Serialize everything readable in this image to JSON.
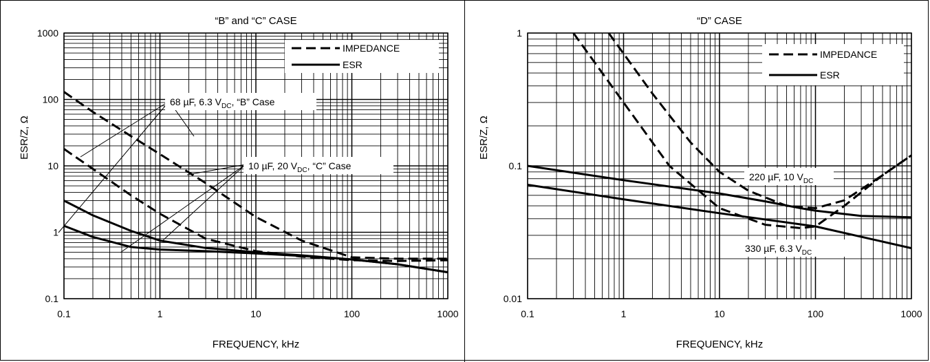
{
  "chart_data": [
    {
      "type": "line",
      "title": "“B” and “C” CASE",
      "xlabel": "FREQUENCY, kHz",
      "ylabel": "ESR/Z, Ω",
      "xscale": "log",
      "yscale": "log",
      "xlim": [
        0.1,
        1000
      ],
      "ylim": [
        0.1,
        1000
      ],
      "grid": true,
      "xticks": [
        "0.1",
        "1",
        "10",
        "100",
        "1000"
      ],
      "yticks": [
        "1000",
        "100",
        "10",
        "1",
        "0.1"
      ],
      "legend": {
        "placement": "top-right",
        "entries": [
          {
            "label": "IMPEDANCE",
            "style": "dashed"
          },
          {
            "label": "ESR",
            "style": "solid"
          }
        ]
      },
      "annotations": [
        {
          "text": "68 µF, 6.3 V",
          "sub": "DC",
          "suffix": ", “B” Case"
        },
        {
          "text": "10 µF, 20 V",
          "sub": "DC",
          "suffix": ", “C” Case"
        }
      ],
      "series": [
        {
          "style": "dashed",
          "points": [
            [
              0.1,
              130
            ],
            [
              0.2,
              65
            ],
            [
              0.5,
              28
            ],
            [
              1,
              15
            ],
            [
              3,
              5.5
            ],
            [
              10,
              1.7
            ],
            [
              30,
              0.75
            ],
            [
              100,
              0.42
            ],
            [
              300,
              0.4
            ],
            [
              1000,
              0.4
            ]
          ]
        },
        {
          "style": "dashed",
          "points": [
            [
              0.1,
              18
            ],
            [
              0.2,
              9
            ],
            [
              0.5,
              3.6
            ],
            [
              1,
              1.9
            ],
            [
              3,
              0.8
            ],
            [
              10,
              0.52
            ],
            [
              30,
              0.43
            ],
            [
              100,
              0.38
            ],
            [
              300,
              0.37
            ],
            [
              1000,
              0.38
            ]
          ]
        },
        {
          "style": "solid",
          "points": [
            [
              0.1,
              3
            ],
            [
              0.2,
              1.8
            ],
            [
              0.5,
              1.05
            ],
            [
              1,
              0.75
            ],
            [
              3,
              0.58
            ],
            [
              10,
              0.5
            ],
            [
              30,
              0.45
            ],
            [
              100,
              0.39
            ],
            [
              300,
              0.33
            ],
            [
              1000,
              0.25
            ]
          ]
        },
        {
          "style": "solid",
          "points": [
            [
              0.1,
              1.25
            ],
            [
              0.2,
              0.85
            ],
            [
              0.5,
              0.6
            ],
            [
              1,
              0.55
            ],
            [
              3,
              0.52
            ],
            [
              10,
              0.48
            ],
            [
              30,
              0.44
            ],
            [
              100,
              0.39
            ],
            [
              300,
              0.33
            ],
            [
              1000,
              0.25
            ]
          ]
        }
      ]
    },
    {
      "type": "line",
      "title": "“D” CASE",
      "xlabel": "FREQUENCY, kHz",
      "ylabel": "ESR/Z, Ω",
      "xscale": "log",
      "yscale": "log",
      "xlim": [
        0.1,
        1000
      ],
      "ylim": [
        0.01,
        1
      ],
      "grid": true,
      "xticks": [
        "0.1",
        "1",
        "10",
        "100",
        "1000"
      ],
      "yticks": [
        "1",
        "0.1",
        "0.01"
      ],
      "legend": {
        "placement": "top-right",
        "entries": [
          {
            "label": "IMPEDANCE",
            "style": "dashed"
          },
          {
            "label": "ESR",
            "style": "solid"
          }
        ]
      },
      "annotations": [
        {
          "text": "220 µF, 10 V",
          "sub": "DC",
          "suffix": ""
        },
        {
          "text": "330 µF, 6.3 V",
          "sub": "DC",
          "suffix": ""
        }
      ],
      "series": [
        {
          "style": "dashed",
          "points": [
            [
              0.3,
              1
            ],
            [
              1,
              0.3
            ],
            [
              3,
              0.1
            ],
            [
              10,
              0.048
            ],
            [
              30,
              0.036
            ],
            [
              70,
              0.034
            ],
            [
              100,
              0.035
            ],
            [
              200,
              0.05
            ],
            [
              500,
              0.085
            ],
            [
              1000,
              0.12
            ]
          ]
        },
        {
          "style": "dashed",
          "points": [
            [
              0.7,
              1
            ],
            [
              2,
              0.35
            ],
            [
              5,
              0.15
            ],
            [
              10,
              0.09
            ],
            [
              20,
              0.065
            ],
            [
              50,
              0.05
            ],
            [
              100,
              0.048
            ],
            [
              200,
              0.055
            ],
            [
              500,
              0.085
            ],
            [
              1000,
              0.12
            ]
          ]
        },
        {
          "style": "solid",
          "points": [
            [
              0.1,
              0.1
            ],
            [
              1,
              0.078
            ],
            [
              10,
              0.062
            ],
            [
              30,
              0.054
            ],
            [
              70,
              0.048
            ],
            [
              100,
              0.046
            ],
            [
              300,
              0.042
            ],
            [
              1000,
              0.041
            ]
          ]
        },
        {
          "style": "solid",
          "points": [
            [
              0.1,
              0.072
            ],
            [
              1,
              0.056
            ],
            [
              10,
              0.044
            ],
            [
              100,
              0.035
            ],
            [
              1000,
              0.024
            ]
          ]
        }
      ]
    }
  ]
}
